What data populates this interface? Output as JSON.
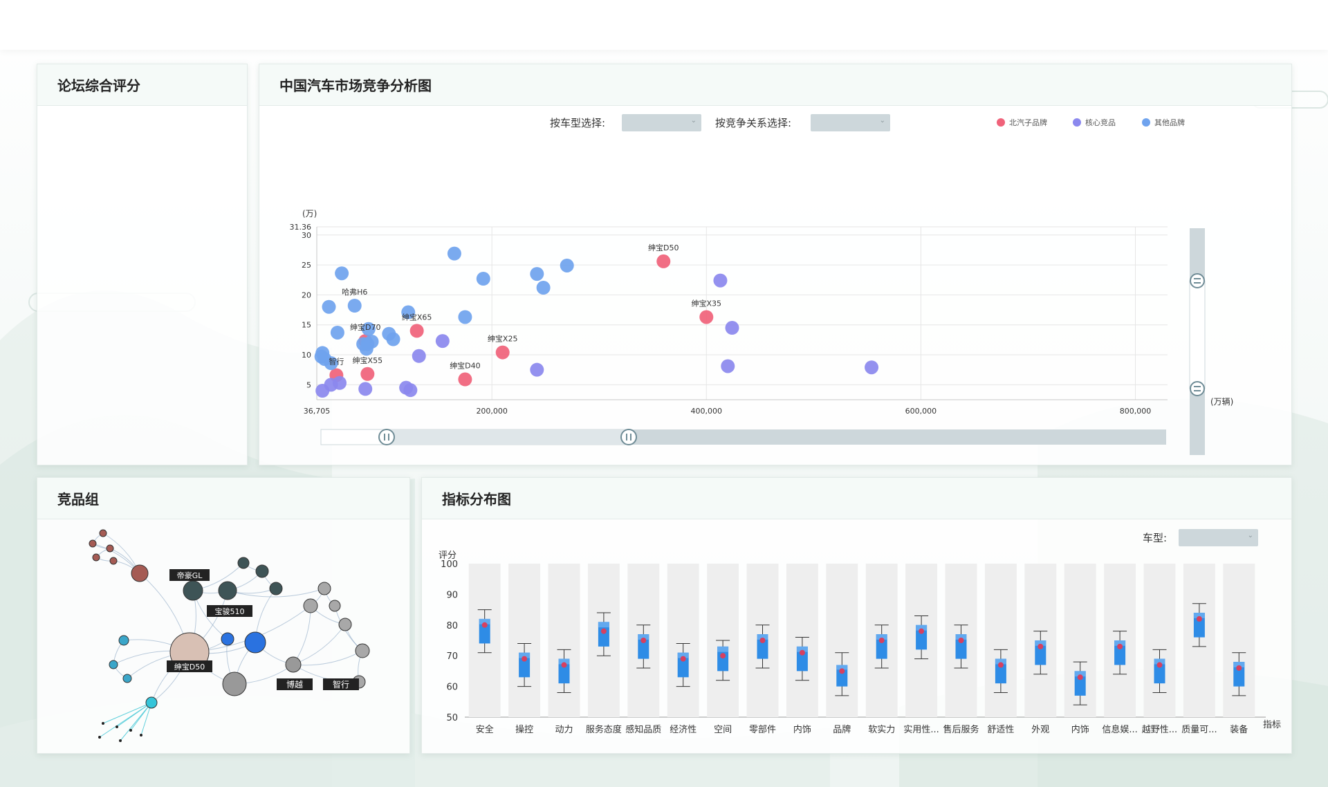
{
  "panels": {
    "forum": {
      "title": "论坛综合评分"
    },
    "market": {
      "title": "中国汽车市场竞争分析图"
    },
    "group": {
      "title": "竞品组"
    },
    "indicator": {
      "title": "指标分布图"
    }
  },
  "market_controls": {
    "car_type_label": "按车型选择:",
    "relation_label": "按竞争关系选择:",
    "car_type_value": "",
    "relation_value": ""
  },
  "indicator_controls": {
    "car_type_label": "车型:",
    "car_type_value": ""
  },
  "colors": {
    "baic": "#f0627a",
    "core": "#8b88ee",
    "other": "#6fa3ee",
    "box": "#2e8ce6",
    "box_light": "#62a9ef",
    "median": "#d64060"
  },
  "chart_data": [
    {
      "type": "scatter",
      "title": "中国汽车市场竞争分析图",
      "xlabel": "(万辆)",
      "ylabel": "(万)",
      "xlim": [
        36705,
        830000
      ],
      "ylim": [
        2.5,
        31.36
      ],
      "x_ticks": [
        36705,
        200000,
        400000,
        600000,
        800000
      ],
      "x_tick_labels": [
        "36,705",
        "200,000",
        "400,000",
        "600,000",
        "800,000"
      ],
      "y_ticks": [
        5,
        10,
        15,
        20,
        25,
        30,
        31.36
      ],
      "y_tick_labels": [
        "5",
        "10",
        "15",
        "20",
        "25",
        "30",
        "31.36"
      ],
      "legend": [
        {
          "key": "baic",
          "label": "北汽子品牌",
          "color": "#f0627a"
        },
        {
          "key": "core",
          "label": "核心竞品",
          "color": "#8b88ee"
        },
        {
          "key": "other",
          "label": "其他品牌",
          "color": "#6fa3ee"
        }
      ],
      "series": [
        {
          "name": "北汽子品牌",
          "key": "baic",
          "points": [
            {
              "x": 360000,
              "y": 25.6,
              "label": "绅宝D50"
            },
            {
              "x": 400000,
              "y": 16.3,
              "label": "绅宝X35"
            },
            {
              "x": 130000,
              "y": 14.0,
              "label": "绅宝X65"
            },
            {
              "x": 82000,
              "y": 12.3,
              "label": "绅宝D70"
            },
            {
              "x": 210000,
              "y": 10.4,
              "label": "绅宝X25"
            },
            {
              "x": 55000,
              "y": 6.6,
              "label": "智行"
            },
            {
              "x": 84000,
              "y": 6.8,
              "label": "绅宝X55"
            },
            {
              "x": 175000,
              "y": 5.9,
              "label": "绅宝D40"
            }
          ]
        },
        {
          "name": "核心竞品",
          "key": "core",
          "points": [
            {
              "x": 413000,
              "y": 22.4
            },
            {
              "x": 424000,
              "y": 14.5
            },
            {
              "x": 154000,
              "y": 12.3
            },
            {
              "x": 132000,
              "y": 9.8
            },
            {
              "x": 242000,
              "y": 7.5
            },
            {
              "x": 420000,
              "y": 8.1
            },
            {
              "x": 554000,
              "y": 7.9
            },
            {
              "x": 50000,
              "y": 5.0
            },
            {
              "x": 58000,
              "y": 5.3
            },
            {
              "x": 82000,
              "y": 4.3
            },
            {
              "x": 120000,
              "y": 4.5
            },
            {
              "x": 42000,
              "y": 4.0
            },
            {
              "x": 124000,
              "y": 4.1
            }
          ]
        },
        {
          "name": "其他品牌",
          "key": "other",
          "points": [
            {
              "x": 165000,
              "y": 26.9
            },
            {
              "x": 60000,
              "y": 23.6
            },
            {
              "x": 270000,
              "y": 24.9
            },
            {
              "x": 242000,
              "y": 23.5
            },
            {
              "x": 248000,
              "y": 21.2
            },
            {
              "x": 192000,
              "y": 22.7
            },
            {
              "x": 48000,
              "y": 18.0
            },
            {
              "x": 72000,
              "y": 18.2,
              "label": "哈弗H6"
            },
            {
              "x": 122000,
              "y": 17.1
            },
            {
              "x": 175000,
              "y": 16.3
            },
            {
              "x": 56000,
              "y": 13.7
            },
            {
              "x": 85000,
              "y": 14.3
            },
            {
              "x": 104000,
              "y": 13.5
            },
            {
              "x": 108000,
              "y": 12.6
            },
            {
              "x": 84000,
              "y": 11.8
            },
            {
              "x": 88000,
              "y": 12.2
            },
            {
              "x": 80000,
              "y": 11.8
            },
            {
              "x": 83000,
              "y": 11.0
            },
            {
              "x": 42000,
              "y": 10.3
            },
            {
              "x": 41000,
              "y": 9.7
            },
            {
              "x": 44000,
              "y": 9.3
            },
            {
              "x": 50000,
              "y": 8.6
            }
          ]
        }
      ]
    },
    {
      "type": "box",
      "title": "指标分布图",
      "ylabel": "评分",
      "xlabel": "指标",
      "ylim": [
        50,
        100
      ],
      "y_ticks": [
        50,
        60,
        70,
        80,
        90,
        100
      ],
      "categories": [
        "安全",
        "操控",
        "动力",
        "服务态度",
        "感知品质",
        "经济性",
        "空间",
        "零部件",
        "内饰",
        "品牌",
        "软实力",
        "实用性...",
        "售后服务",
        "舒适性",
        "外观",
        "内饰",
        "信息娱...",
        "越野性...",
        "质量可...",
        "装备"
      ],
      "series": [
        {
          "name": "min",
          "values": [
            71,
            60,
            58,
            70,
            66,
            60,
            62,
            66,
            62,
            57,
            66,
            69,
            66,
            58,
            64,
            54,
            64,
            58,
            73,
            57
          ]
        },
        {
          "name": "q1",
          "values": [
            74,
            63,
            61,
            73,
            69,
            63,
            65,
            69,
            65,
            60,
            69,
            72,
            69,
            61,
            67,
            57,
            67,
            61,
            76,
            60
          ]
        },
        {
          "name": "median",
          "values": [
            80,
            69,
            67,
            78,
            75,
            69,
            70,
            75,
            71,
            65,
            75,
            78,
            75,
            67,
            73,
            63,
            73,
            67,
            82,
            66
          ]
        },
        {
          "name": "q3",
          "values": [
            82,
            71,
            69,
            81,
            77,
            71,
            73,
            77,
            73,
            67,
            77,
            80,
            77,
            69,
            75,
            65,
            75,
            69,
            84,
            68
          ]
        },
        {
          "name": "max",
          "values": [
            85,
            74,
            72,
            84,
            80,
            74,
            75,
            80,
            76,
            71,
            80,
            83,
            80,
            72,
            78,
            68,
            78,
            72,
            87,
            71
          ]
        }
      ]
    },
    {
      "type": "network",
      "title": "竞品组",
      "nodes": [
        {
          "label": "帝豪GL",
          "group": "dark"
        },
        {
          "label": "宝骏510",
          "group": "dark"
        },
        {
          "label": "绅宝D50",
          "group": "center"
        },
        {
          "label": "博越",
          "group": "gray"
        },
        {
          "label": "智行",
          "group": "gray"
        }
      ]
    }
  ]
}
